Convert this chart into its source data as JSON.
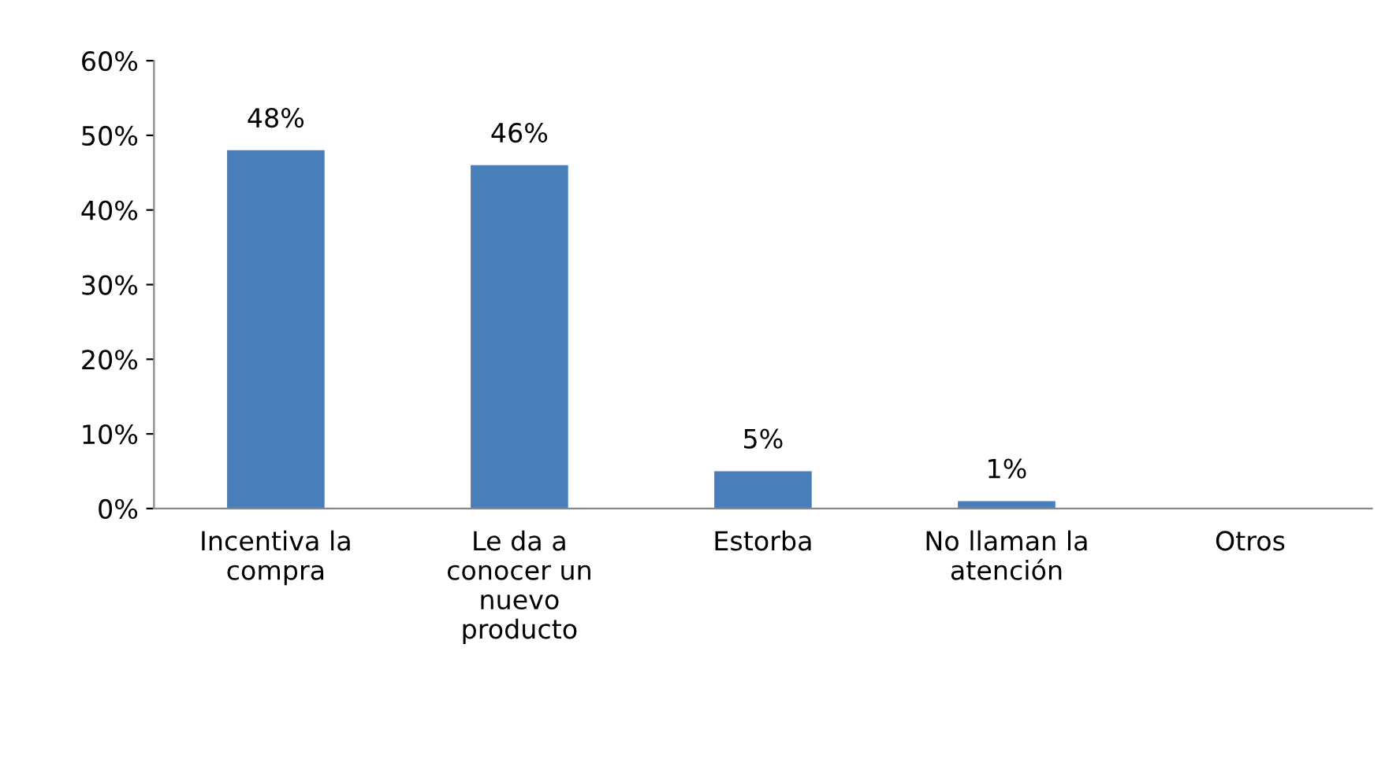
{
  "chart_data": {
    "type": "bar",
    "categories": [
      "Incentiva la\ncompra",
      "Le da a\nconocer un\nnuevo\nproducto",
      "Estorba",
      "No llaman la\natención",
      "Otros"
    ],
    "values": [
      48,
      46,
      5,
      1,
      0
    ],
    "value_labels": [
      "48%",
      "46%",
      "5%",
      "1%",
      null
    ],
    "color": "#4a7ebb",
    "ylim": [
      0,
      60
    ],
    "yticks": [
      {
        "value": 0,
        "label": "0%"
      },
      {
        "value": 10,
        "label": "10%"
      },
      {
        "value": 20,
        "label": "20%"
      },
      {
        "value": 30,
        "label": "30%"
      },
      {
        "value": 40,
        "label": "40%"
      },
      {
        "value": 50,
        "label": "50%"
      },
      {
        "value": 60,
        "label": "60%"
      }
    ],
    "grid": false,
    "legend": false
  }
}
